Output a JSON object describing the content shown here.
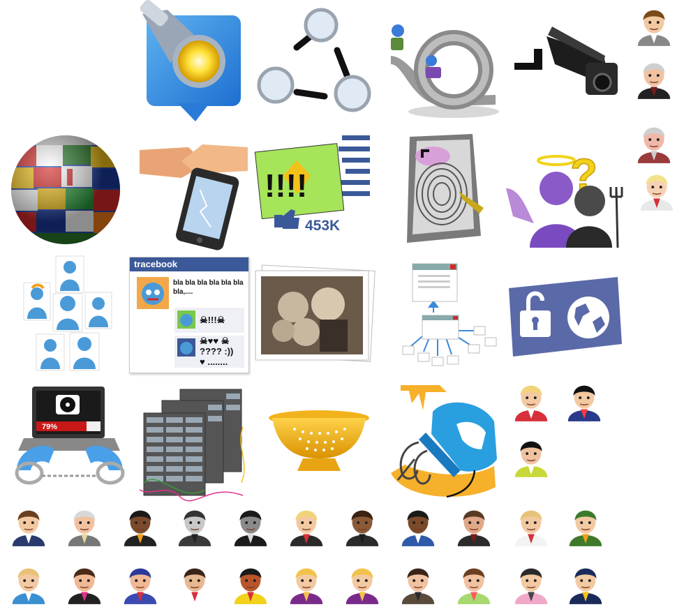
{
  "icons": {
    "flashlight": "flashlight-icon",
    "magnifiers": "magnifier-network-icon",
    "loop": "rollercoaster-loop-icon",
    "camera": "security-camera-icon",
    "globe": "flag-globe-icon",
    "handshake": "handshake-phone-icon",
    "post": "exclamation-post-icon",
    "key": "fingerprint-key-icon",
    "angel_devil": "angel-devil-icon",
    "avatars": "avatar-cards-icon",
    "photo": "old-photo-icon",
    "windows": "window-tree-icon",
    "lock_globe": "unlock-globe-icon",
    "laptop": "handcuffed-laptop-icon",
    "servers": "server-rack-icon",
    "colander": "colander-icon",
    "mixer": "hand-mixer-icon"
  },
  "tracebook": {
    "title": "tracebook",
    "post_text": "bla bla bla bla bla bla bla,....",
    "reply1": "☠!!!☠",
    "reply2_line1": "☠♥♥ ☠",
    "reply2_line2": "???? :))",
    "reply2_line3": "♥ ........"
  },
  "social_post": {
    "exclamations": "!!!!",
    "likes": "453K"
  },
  "laptop": {
    "progress_label": "79%",
    "progress": 0.79
  },
  "colors": {
    "facebook_blue": "#3b5998",
    "sticky_green": "#a6e45a",
    "purple": "#7a4bc0",
    "colander_gold": "#f2b21c",
    "mixer_blue": "#2a9fe0",
    "yolk": "#f6b02a"
  },
  "people": {
    "row1": [
      {
        "hair": "#6b3f1f",
        "skin": "#f3c9a1",
        "shirt": "#2a3a6e",
        "accent": "#ffffff"
      },
      {
        "hair": "#d8d8d8",
        "skin": "#f0c2a0",
        "shirt": "#777777",
        "accent": "#e6d9a0"
      },
      {
        "hair": "#1a1a1a",
        "skin": "#7a4a2a",
        "shirt": "#222222",
        "accent": "#f2a01a"
      },
      {
        "hair": "#333333",
        "skin": "#c8c8c8",
        "shirt": "#3a3a3a",
        "accent": "#222222"
      },
      {
        "hair": "#1b1b1b",
        "skin": "#8a8a8a",
        "shirt": "#1b1b1b",
        "accent": "#d8d8d8"
      },
      {
        "hair": "#f2d37a",
        "skin": "#f3c9a1",
        "shirt": "#2a2a2a",
        "accent": "#d6303a"
      },
      {
        "hair": "#3b2212",
        "skin": "#8a5a36",
        "shirt": "#2b2b2b",
        "accent": "#1b1b1b"
      },
      {
        "hair": "#1a1a1a",
        "skin": "#7a4a2a",
        "shirt": "#2f5aa8",
        "accent": "#ffffff"
      },
      {
        "hair": "#5a3a24",
        "skin": "#e0a888",
        "shirt": "#2b2b2b",
        "accent": "#7a1b1b"
      },
      {
        "hair": "#e8c27a",
        "skin": "#f3c9a1",
        "shirt": "#f3f3f3",
        "accent": "#d6303a"
      },
      {
        "hair": "#3a7a2a",
        "skin": "#f3c9a1",
        "shirt": "#3f7a2a",
        "accent": "#f2a01a"
      }
    ],
    "row2": [
      {
        "hair": "#e8c27a",
        "skin": "#f3c9a1",
        "shirt": "#3a8fd0",
        "accent": "#ffffff"
      },
      {
        "hair": "#4a2a18",
        "skin": "#f0b895",
        "shirt": "#222222",
        "accent": "#e0308a"
      },
      {
        "hair": "#2a3a9a",
        "skin": "#f0b895",
        "shirt": "#3a4ab0",
        "accent": "#d6303a"
      },
      {
        "hair": "#3a2418",
        "skin": "#e8b890",
        "shirt": "#ffffff",
        "accent": "#d6303a"
      },
      {
        "hair": "#1a1a1a",
        "skin": "#b8552a",
        "shirt": "#f2d21a",
        "accent": "#d6303a"
      },
      {
        "hair": "#f2c24a",
        "skin": "#f3c9a1",
        "shirt": "#7a2a8a",
        "accent": "#f2c24a"
      },
      {
        "hair": "#f2c24a",
        "skin": "#f3c9a1",
        "shirt": "#7a2a8a",
        "accent": "#f2c24a"
      },
      {
        "hair": "#3a2418",
        "skin": "#f0c2a0",
        "shirt": "#5a4a3a",
        "accent": "#2b2b2b"
      },
      {
        "hair": "#6b3f1f",
        "skin": "#f0c2a0",
        "shirt": "#a8d870",
        "accent": "#ff5a5a"
      },
      {
        "hair": "#2a2a2a",
        "skin": "#f3c9a1",
        "shirt": "#f0a8c8",
        "accent": "#444444"
      },
      {
        "hair": "#1a2a5a",
        "skin": "#f3c9a1",
        "shirt": "#1a2a5a",
        "accent": "#f2c21a"
      }
    ],
    "right_column": [
      {
        "hair": "#7a4a1a",
        "skin": "#f3c9a1",
        "shirt": "#888888",
        "accent": "#ffffff"
      },
      {
        "hair": "#cfcfcf",
        "skin": "#f0c2a0",
        "shirt": "#222222",
        "accent": "#7a1b1b"
      },
      {
        "hair": "#cfcfcf",
        "skin": "#f0b8a8",
        "shirt": "#9a3a3a",
        "accent": "#cccccc"
      },
      {
        "hair": "#f2e28a",
        "skin": "#f6d2b4",
        "shirt": "#e8e8e8",
        "accent": "#d6303a"
      },
      {
        "hair": "#f2d37a",
        "skin": "#f3c9a1",
        "shirt": "#d6303a",
        "accent": "#ffffff"
      },
      {
        "hair": "#111111",
        "skin": "#f3c9a1",
        "shirt": "#2a3a8a",
        "accent": "#ff3a3a"
      },
      {
        "hair": "#111111",
        "skin": "#f0c2a0",
        "shirt": "#c8d83a",
        "accent": "#ffffff"
      }
    ]
  }
}
